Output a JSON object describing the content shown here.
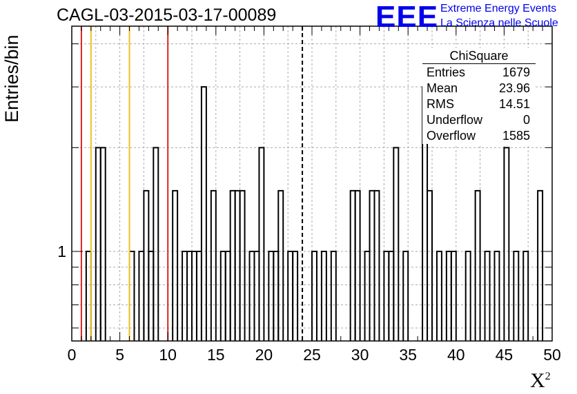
{
  "header": {
    "run_title": "CAGL-03-2015-03-17-00089",
    "logo_text": "EEE",
    "logo_line1": "Extreme Energy Events",
    "logo_line2": "La Scienza nelle Scuole"
  },
  "stats_box": {
    "title": "ChiSquare",
    "rows": [
      {
        "label": "Entries",
        "value": "1679"
      },
      {
        "label": "Mean",
        "value": "23.96"
      },
      {
        "label": "RMS",
        "value": "14.51"
      },
      {
        "label": "Underflow",
        "value": "0"
      },
      {
        "label": "Overflow",
        "value": "1585"
      }
    ]
  },
  "chart_data": {
    "type": "histogram",
    "title": "CAGL-03-2015-03-17-00089",
    "xlabel": "X",
    "xlabel_superscript": "2",
    "ylabel": "Entries/bin",
    "xlim": [
      0,
      50
    ],
    "bin_width": 0.5,
    "y_scale": "log",
    "ylim": [
      0.55,
      4.5
    ],
    "x_ticks": [
      0,
      5,
      10,
      15,
      20,
      25,
      30,
      35,
      40,
      45,
      50
    ],
    "y_tick_labels": [
      {
        "value": 1,
        "label": "1"
      }
    ],
    "grid": true,
    "bins": [
      {
        "x": 1.5,
        "count": 1
      },
      {
        "x": 2.5,
        "count": 2
      },
      {
        "x": 3.0,
        "count": 2
      },
      {
        "x": 6.0,
        "count": 1
      },
      {
        "x": 7.0,
        "count": 1
      },
      {
        "x": 7.5,
        "count": 1.5
      },
      {
        "x": 8.0,
        "count": 1
      },
      {
        "x": 8.5,
        "count": 2
      },
      {
        "x": 10.5,
        "count": 1.5
      },
      {
        "x": 11.5,
        "count": 1
      },
      {
        "x": 12.0,
        "count": 1
      },
      {
        "x": 12.5,
        "count": 1
      },
      {
        "x": 13.0,
        "count": 1
      },
      {
        "x": 13.5,
        "count": 3
      },
      {
        "x": 14.5,
        "count": 1.5
      },
      {
        "x": 15.5,
        "count": 1
      },
      {
        "x": 16.0,
        "count": 1
      },
      {
        "x": 16.5,
        "count": 1.5
      },
      {
        "x": 17.0,
        "count": 1.5
      },
      {
        "x": 17.5,
        "count": 1.5
      },
      {
        "x": 18.5,
        "count": 1
      },
      {
        "x": 19.0,
        "count": 1
      },
      {
        "x": 19.5,
        "count": 2
      },
      {
        "x": 20.5,
        "count": 1
      },
      {
        "x": 21.0,
        "count": 1
      },
      {
        "x": 21.5,
        "count": 1.5
      },
      {
        "x": 22.5,
        "count": 1
      },
      {
        "x": 23.0,
        "count": 1
      },
      {
        "x": 25.0,
        "count": 1
      },
      {
        "x": 26.0,
        "count": 1
      },
      {
        "x": 27.0,
        "count": 1
      },
      {
        "x": 29.0,
        "count": 1.5
      },
      {
        "x": 29.5,
        "count": 1.5
      },
      {
        "x": 30.5,
        "count": 1
      },
      {
        "x": 31.0,
        "count": 1.5
      },
      {
        "x": 31.5,
        "count": 1.5
      },
      {
        "x": 32.5,
        "count": 1
      },
      {
        "x": 33.0,
        "count": 1
      },
      {
        "x": 33.5,
        "count": 2
      },
      {
        "x": 34.5,
        "count": 1
      },
      {
        "x": 36.5,
        "count": 3
      },
      {
        "x": 37.0,
        "count": 1.5
      },
      {
        "x": 38.0,
        "count": 1
      },
      {
        "x": 39.0,
        "count": 1
      },
      {
        "x": 39.5,
        "count": 1
      },
      {
        "x": 41.0,
        "count": 1
      },
      {
        "x": 42.0,
        "count": 1.5
      },
      {
        "x": 43.0,
        "count": 1
      },
      {
        "x": 44.0,
        "count": 1
      },
      {
        "x": 45.0,
        "count": 2
      },
      {
        "x": 46.0,
        "count": 1
      },
      {
        "x": 47.0,
        "count": 1
      },
      {
        "x": 48.5,
        "count": 1.5
      }
    ],
    "vertical_markers": [
      {
        "x": 1,
        "color": "#dd2222",
        "style": "solid"
      },
      {
        "x": 2,
        "color": "#f0c020",
        "style": "solid"
      },
      {
        "x": 6,
        "color": "#f0c020",
        "style": "solid"
      },
      {
        "x": 10,
        "color": "#dd2222",
        "style": "solid"
      },
      {
        "x": 24,
        "color": "#000000",
        "style": "dashed"
      }
    ]
  }
}
